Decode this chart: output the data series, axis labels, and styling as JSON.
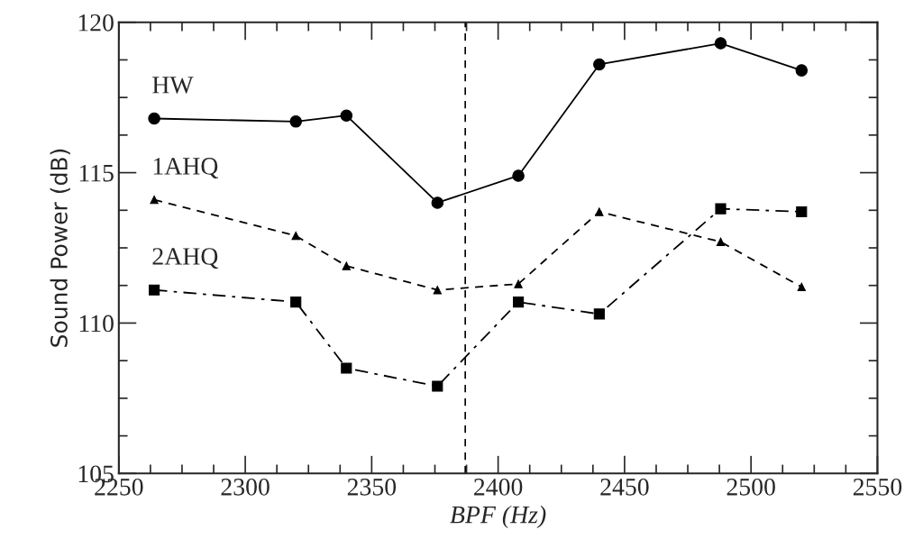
{
  "chart_data": {
    "type": "line",
    "xlabel": "BPF (Hz)",
    "ylabel": "Sound Power (dB)",
    "x": [
      2264,
      2320,
      2340,
      2376,
      2408,
      2440,
      2488,
      2520
    ],
    "series": [
      {
        "name": "HW",
        "color": "#000000",
        "marker": "circle",
        "line_style": "solid",
        "values": [
          116.8,
          116.7,
          116.9,
          114.0,
          114.9,
          118.6,
          119.3,
          118.4
        ]
      },
      {
        "name": "1AHQ",
        "color": "#000000",
        "marker": "triangle",
        "line_style": "dashed",
        "values": [
          114.1,
          112.9,
          111.9,
          111.1,
          111.3,
          113.7,
          112.7,
          111.2
        ]
      },
      {
        "name": "2AHQ",
        "color": "#000000",
        "marker": "square",
        "line_style": "dashdot",
        "values": [
          111.1,
          110.7,
          108.5,
          107.9,
          110.7,
          110.3,
          113.8,
          113.7
        ]
      }
    ],
    "xlim": [
      2250,
      2550
    ],
    "xticks": [
      2250,
      2300,
      2350,
      2400,
      2450,
      2500,
      2550
    ],
    "ylim": [
      105,
      120
    ],
    "yticks": [
      105,
      110,
      115,
      120
    ],
    "ref_lines": [
      {
        "axis": "x",
        "value": 2387,
        "color": "#000000",
        "line_style": "dashed"
      }
    ],
    "grid": false,
    "legend": false
  }
}
